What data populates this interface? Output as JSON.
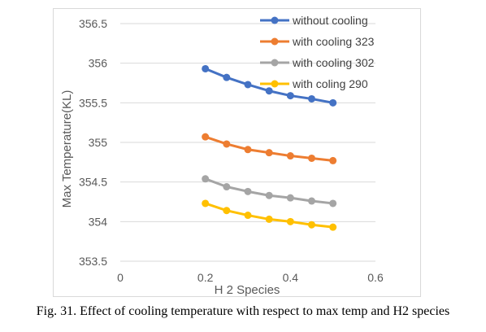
{
  "caption": "Fig. 31. Effect of cooling temperature with respect to max temp and H2 species",
  "chart_data": {
    "type": "line",
    "title": "",
    "xlabel": "H 2 Species",
    "ylabel": "Max Temperature(KL)",
    "xlim": [
      0,
      0.6
    ],
    "ylim": [
      353.5,
      356.5
    ],
    "x_ticks": [
      0,
      0.2,
      0.4,
      0.6
    ],
    "y_ticks": [
      353.5,
      354,
      354.5,
      355,
      355.5,
      356,
      356.5
    ],
    "grid": "horizontal",
    "legend_position": "top-right",
    "x": [
      0.2,
      0.25,
      0.3,
      0.35,
      0.4,
      0.45,
      0.5
    ],
    "series": [
      {
        "name": "without cooling",
        "color": "#4472c4",
        "values": [
          355.93,
          355.82,
          355.73,
          355.65,
          355.59,
          355.55,
          355.5
        ]
      },
      {
        "name": "with cooling 323",
        "color": "#ed7d31",
        "values": [
          355.07,
          354.98,
          354.91,
          354.87,
          354.83,
          354.8,
          354.77
        ]
      },
      {
        "name": "with cooling 302",
        "color": "#a5a5a5",
        "values": [
          354.54,
          354.44,
          354.38,
          354.33,
          354.3,
          354.26,
          354.23
        ]
      },
      {
        "name": "with coling 290",
        "color": "#ffc000",
        "values": [
          354.23,
          354.14,
          354.08,
          354.03,
          354.0,
          353.96,
          353.93
        ]
      }
    ]
  }
}
